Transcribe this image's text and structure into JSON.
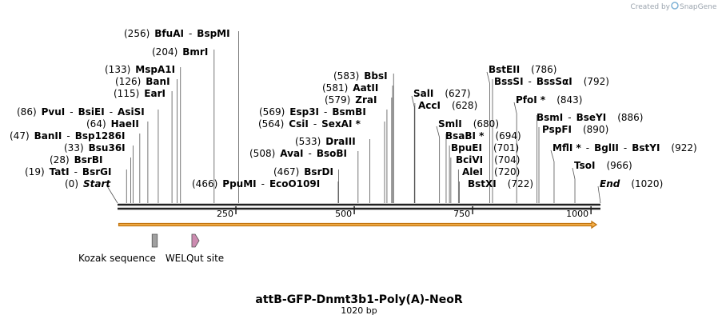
{
  "credit": {
    "prefix": "Created by",
    "brand": "SnapGene"
  },
  "map": {
    "title": "attB-GFP-Dnmt3b1-Poly(A)-NeoR",
    "length_label": "1020 bp",
    "length": 1020,
    "tick_values": [
      250,
      500,
      750,
      1000
    ],
    "colors": {
      "backbone": "#222222",
      "arrow_fill": "#f5b04a",
      "arrow_stroke": "#c07410",
      "kozak": "#a0a0a0",
      "welqut": "#cc8bb0",
      "leader": "#555555"
    }
  },
  "sites": [
    {
      "id": "start",
      "pos": 0,
      "pos_label": "(0)",
      "names": [
        "Start"
      ],
      "term": true
    },
    {
      "id": "tatI",
      "pos": 19,
      "pos_label": "(19)",
      "names": [
        "TatI",
        "BsrGI"
      ]
    },
    {
      "id": "bsrBI",
      "pos": 28,
      "pos_label": "(28)",
      "names": [
        "BsrBI"
      ]
    },
    {
      "id": "bsu36I",
      "pos": 33,
      "pos_label": "(33)",
      "names": [
        "Bsu36I"
      ]
    },
    {
      "id": "banII",
      "pos": 47,
      "pos_label": "(47)",
      "names": [
        "BanII",
        "Bsp1286I"
      ]
    },
    {
      "id": "haeII",
      "pos": 64,
      "pos_label": "(64)",
      "names": [
        "HaeII"
      ]
    },
    {
      "id": "pvuI",
      "pos": 86,
      "pos_label": "(86)",
      "names": [
        "PvuI",
        "BsiEI",
        "AsiSI"
      ]
    },
    {
      "id": "earI",
      "pos": 115,
      "pos_label": "(115)",
      "names": [
        "EarI"
      ]
    },
    {
      "id": "banI",
      "pos": 126,
      "pos_label": "(126)",
      "names": [
        "BanI"
      ]
    },
    {
      "id": "mspA1I",
      "pos": 133,
      "pos_label": "(133)",
      "names": [
        "MspA1I"
      ]
    },
    {
      "id": "bmrI",
      "pos": 204,
      "pos_label": "(204)",
      "names": [
        "BmrI"
      ]
    },
    {
      "id": "bfuAI",
      "pos": 256,
      "pos_label": "(256)",
      "names": [
        "BfuAI",
        "BspMI"
      ]
    },
    {
      "id": "ppuMI",
      "pos": 466,
      "pos_label": "(466)",
      "names": [
        "PpuMI",
        "EcoO109I"
      ]
    },
    {
      "id": "bsrDI",
      "pos": 467,
      "pos_label": "(467)",
      "names": [
        "BsrDI"
      ]
    },
    {
      "id": "avaI",
      "pos": 508,
      "pos_label": "(508)",
      "names": [
        "AvaI",
        "BsoBI"
      ]
    },
    {
      "id": "draIII",
      "pos": 533,
      "pos_label": "(533)",
      "names": [
        "DraIII"
      ]
    },
    {
      "id": "csiI",
      "pos": 564,
      "pos_label": "(564)",
      "names": [
        "CsiI",
        "SexAI *"
      ]
    },
    {
      "id": "esp3I",
      "pos": 569,
      "pos_label": "(569)",
      "names": [
        "Esp3I",
        "BsmBI"
      ]
    },
    {
      "id": "zraI",
      "pos": 579,
      "pos_label": "(579)",
      "names": [
        "ZraI"
      ]
    },
    {
      "id": "aatII",
      "pos": 581,
      "pos_label": "(581)",
      "names": [
        "AatII"
      ]
    },
    {
      "id": "bbsI",
      "pos": 583,
      "pos_label": "(583)",
      "names": [
        "BbsI"
      ]
    },
    {
      "id": "salI",
      "pos": 627,
      "pos_label": "(627)",
      "names": [
        "SalI"
      ]
    },
    {
      "id": "accI",
      "pos": 628,
      "pos_label": "(628)",
      "names": [
        "AccI"
      ]
    },
    {
      "id": "smlI",
      "pos": 680,
      "pos_label": "(680)",
      "names": [
        "SmlI"
      ]
    },
    {
      "id": "bsaBI",
      "pos": 694,
      "pos_label": "(694)",
      "names": [
        "BsaBI *"
      ]
    },
    {
      "id": "bpuEI",
      "pos": 701,
      "pos_label": "(701)",
      "names": [
        "BpuEI"
      ]
    },
    {
      "id": "bciVI",
      "pos": 704,
      "pos_label": "(704)",
      "names": [
        "BciVI"
      ]
    },
    {
      "id": "aleI",
      "pos": 720,
      "pos_label": "(720)",
      "names": [
        "AleI"
      ]
    },
    {
      "id": "bstXI",
      "pos": 722,
      "pos_label": "(722)",
      "names": [
        "BstXI"
      ]
    },
    {
      "id": "bstEII",
      "pos": 786,
      "pos_label": "(786)",
      "names": [
        "BstEII"
      ]
    },
    {
      "id": "bssSI",
      "pos": 792,
      "pos_label": "(792)",
      "names": [
        "BssSI",
        "BssSαI"
      ]
    },
    {
      "id": "pfoI",
      "pos": 843,
      "pos_label": "(843)",
      "names": [
        "PfoI *"
      ]
    },
    {
      "id": "bsmI",
      "pos": 886,
      "pos_label": "(886)",
      "names": [
        "BsmI",
        "BseYI"
      ]
    },
    {
      "id": "pspFI",
      "pos": 890,
      "pos_label": "(890)",
      "names": [
        "PspFI"
      ]
    },
    {
      "id": "mflI",
      "pos": 922,
      "pos_label": "(922)",
      "names": [
        "MflI *",
        "BglII",
        "BstYI"
      ]
    },
    {
      "id": "tsoI",
      "pos": 966,
      "pos_label": "(966)",
      "names": [
        "TsoI"
      ]
    },
    {
      "id": "end",
      "pos": 1020,
      "pos_label": "(1020)",
      "names": [
        "End"
      ],
      "term": true
    }
  ],
  "features": [
    {
      "id": "orf",
      "type": "orf-arrow",
      "start": 1,
      "end": 1020
    },
    {
      "id": "kozak",
      "type": "box",
      "label": "Kozak sequence",
      "start": 73,
      "end": 84
    },
    {
      "id": "welqut",
      "type": "pentagon",
      "label": "WELQut site",
      "start": 157,
      "end": 169
    }
  ]
}
